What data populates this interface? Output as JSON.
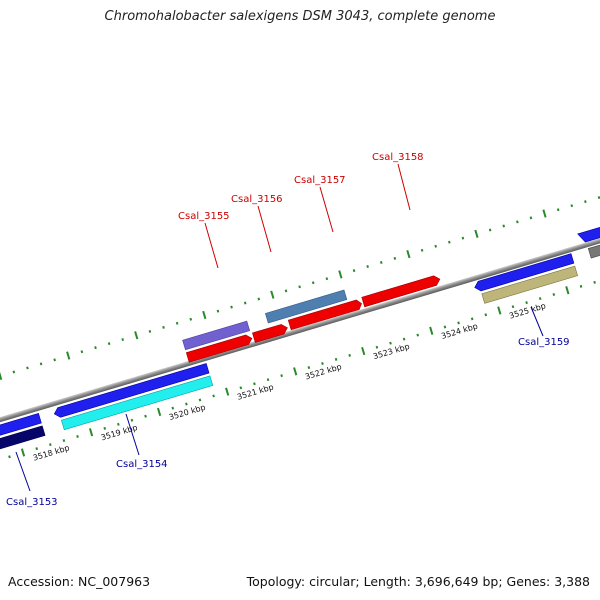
{
  "title": "Chromohalobacter salexigens DSM 3043, complete genome",
  "footer": {
    "accession": "Accession: NC_007963",
    "summary": "Topology: circular; Length: 3,696,649 bp; Genes: 3,388"
  },
  "colors": {
    "backbone": "#8a8a8a",
    "tick": "#2a8a2a",
    "label_top": "#cc0000",
    "label_bottom": "#000099"
  },
  "tick_labels": [
    "3518 kbp",
    "3519 kbp",
    "3520 kbp",
    "3521 kbp",
    "3522 kbp",
    "3523 kbp",
    "3524 kbp",
    "3525 kbp"
  ],
  "genes": [
    {
      "name": "Csal_3153",
      "side": "bottom"
    },
    {
      "name": "Csal_3154",
      "side": "bottom"
    },
    {
      "name": "Csal_3155",
      "side": "top"
    },
    {
      "name": "Csal_3156",
      "side": "top"
    },
    {
      "name": "Csal_3157",
      "side": "top"
    },
    {
      "name": "Csal_3158",
      "side": "top"
    },
    {
      "name": "Csal_3159",
      "side": "bottom"
    }
  ]
}
